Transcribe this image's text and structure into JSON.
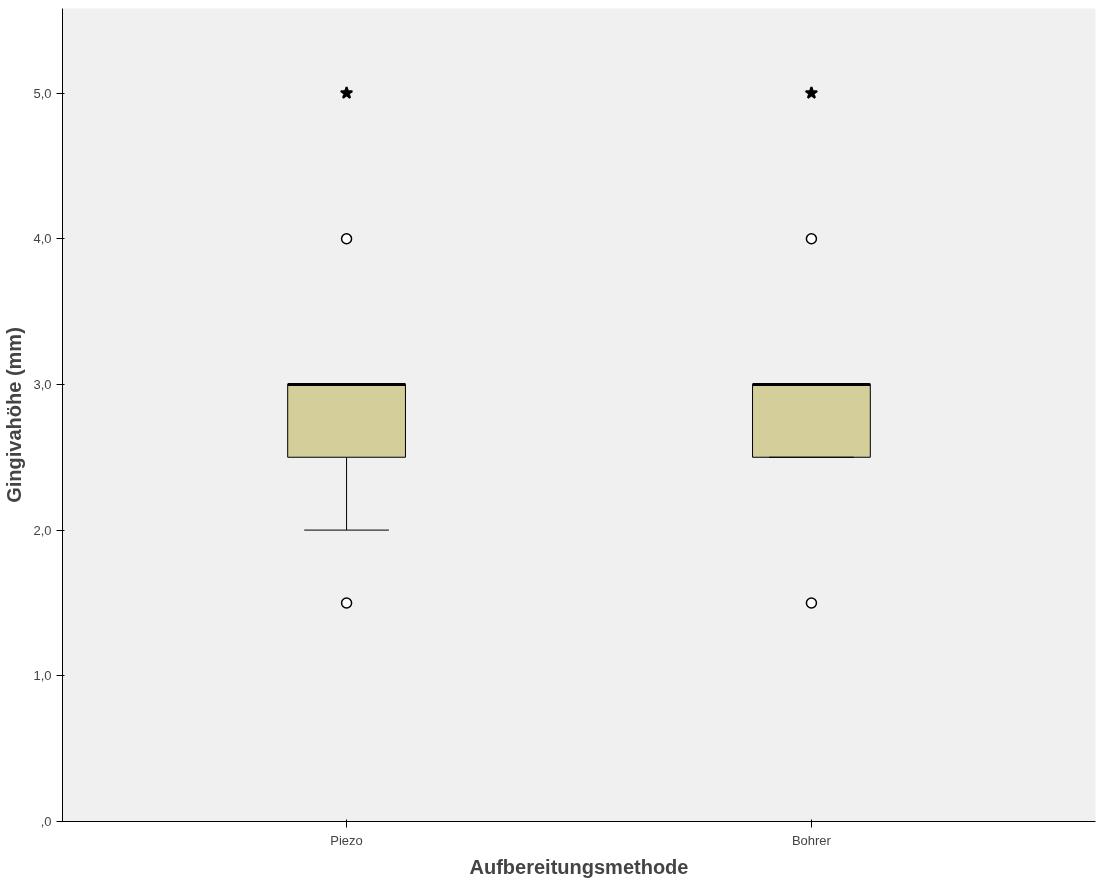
{
  "chart_data": {
    "type": "box",
    "xlabel": "Aufbereitungsmethode",
    "ylabel": "Gingivahöhe (mm)",
    "categories": [
      "Piezo",
      "Bohrer"
    ],
    "ylim": [
      0,
      5.58
    ],
    "yticks": [
      {
        "value": 0,
        "label": ",0"
      },
      {
        "value": 1,
        "label": "1,0"
      },
      {
        "value": 2,
        "label": "2,0"
      },
      {
        "value": 3,
        "label": "3,0"
      },
      {
        "value": 4,
        "label": "4,0"
      },
      {
        "value": 5,
        "label": "5,0"
      }
    ],
    "grid": false,
    "series": [
      {
        "color": "#d3ce9a",
        "boxes": [
          {
            "low": 2.0,
            "q1": 2.5,
            "median": 3.0,
            "q3": 3.0,
            "high": 3.0,
            "outliers": [
              1.5,
              4.0
            ]
          },
          {
            "low": 2.5,
            "q1": 2.5,
            "median": 3.0,
            "q3": 3.0,
            "high": 3.0,
            "outliers": [
              1.5,
              4.0
            ]
          }
        ]
      },
      {
        "type": "scatter",
        "marker": "star",
        "color": "#000000",
        "x": [
          "Piezo",
          "Bohrer"
        ],
        "values": [
          5.0,
          5.0
        ]
      }
    ]
  }
}
